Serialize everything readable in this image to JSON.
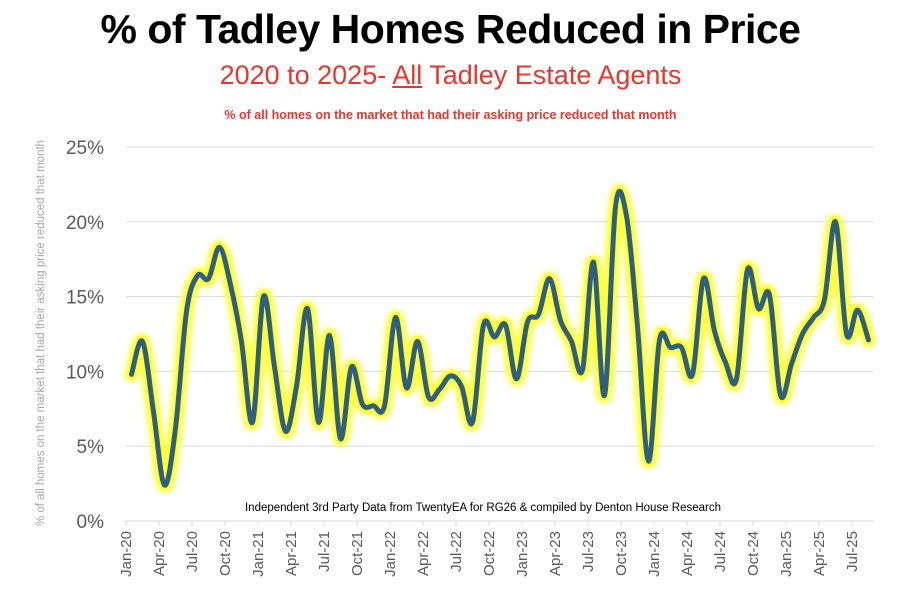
{
  "header": {
    "title": "% of Tadley Homes Reduced in Price",
    "subtitle_prefix": "2020 to 2025- ",
    "subtitle_underlined": "All",
    "subtitle_suffix": " Tadley Estate Agents",
    "note": "% of all homes on the market that had their asking price reduced that month"
  },
  "colors": {
    "line": "#2e5f80",
    "glow": "#ffff3c",
    "accent_red": "#e8362d",
    "gridline": "#d9d9d9"
  },
  "chart_data": {
    "type": "line",
    "title": "% of Tadley Homes Reduced in Price",
    "subtitle": "2020 to 2025- All Tadley Estate Agents",
    "xlabel": "",
    "ylabel": "% of all homes on the market that had their asking price reduced that month",
    "ylim": [
      0,
      25
    ],
    "y_ticks": [
      0,
      5,
      10,
      15,
      20,
      25
    ],
    "y_tick_labels": [
      "0%",
      "5%",
      "10%",
      "15%",
      "20%",
      "25%"
    ],
    "x_tick_labels": [
      "Jan-20",
      "Apr-20",
      "Jul-20",
      "Oct-20",
      "Jan-21",
      "Apr-21",
      "Jul-21",
      "Oct-21",
      "Jan-22",
      "Apr-22",
      "Jul-22",
      "Oct-22",
      "Jan-23",
      "Apr-23",
      "Jul-23",
      "Oct-23",
      "Jan-24",
      "Apr-24",
      "Jul-24",
      "Oct-24",
      "Jan-25",
      "Apr-25",
      "Jul-25"
    ],
    "grid": true,
    "legend": "none",
    "annotation": "Independent 3rd Party Data from TwentyEA for RG26 & compiled by Denton House Research",
    "x": [
      "Jan-20",
      "Feb-20",
      "Mar-20",
      "Apr-20",
      "May-20",
      "Jun-20",
      "Jul-20",
      "Aug-20",
      "Sep-20",
      "Oct-20",
      "Nov-20",
      "Dec-20",
      "Jan-21",
      "Feb-21",
      "Mar-21",
      "Apr-21",
      "May-21",
      "Jun-21",
      "Jul-21",
      "Aug-21",
      "Sep-21",
      "Oct-21",
      "Nov-21",
      "Dec-21",
      "Jan-22",
      "Feb-22",
      "Mar-22",
      "Apr-22",
      "May-22",
      "Jun-22",
      "Jul-22",
      "Aug-22",
      "Sep-22",
      "Oct-22",
      "Nov-22",
      "Dec-22",
      "Jan-23",
      "Feb-23",
      "Mar-23",
      "Apr-23",
      "May-23",
      "Jun-23",
      "Jul-23",
      "Aug-23",
      "Sep-23",
      "Oct-23",
      "Nov-23",
      "Dec-23",
      "Jan-24",
      "Feb-24",
      "Mar-24",
      "Apr-24",
      "May-24",
      "Jun-24",
      "Jul-24",
      "Aug-24",
      "Sep-24",
      "Oct-24",
      "Nov-24",
      "Dec-24",
      "Jan-25",
      "Feb-25",
      "Mar-25",
      "Apr-25",
      "May-25",
      "Jun-25",
      "Jul-25",
      "Aug-25"
    ],
    "series": [
      {
        "name": "% reduced",
        "values": [
          9.8,
          12.0,
          7.3,
          2.4,
          6.2,
          14.0,
          16.4,
          16.2,
          18.3,
          15.8,
          12.0,
          6.6,
          15.0,
          10.3,
          6.0,
          9.0,
          14.2,
          6.6,
          12.4,
          5.5,
          10.3,
          7.8,
          7.7,
          7.7,
          13.6,
          8.9,
          12.0,
          8.3,
          8.8,
          9.7,
          9.0,
          6.6,
          13.1,
          12.3,
          13.1,
          9.5,
          13.3,
          13.8,
          16.2,
          13.4,
          12.0,
          10.1,
          17.3,
          8.4,
          21.0,
          20.4,
          13.0,
          4.0,
          12.1,
          11.6,
          11.6,
          9.8,
          16.2,
          12.7,
          10.6,
          9.5,
          16.8,
          14.2,
          15.1,
          8.4,
          10.5,
          12.5,
          13.6,
          14.8,
          20.0,
          12.5,
          14.1,
          12.1
        ]
      }
    ]
  }
}
